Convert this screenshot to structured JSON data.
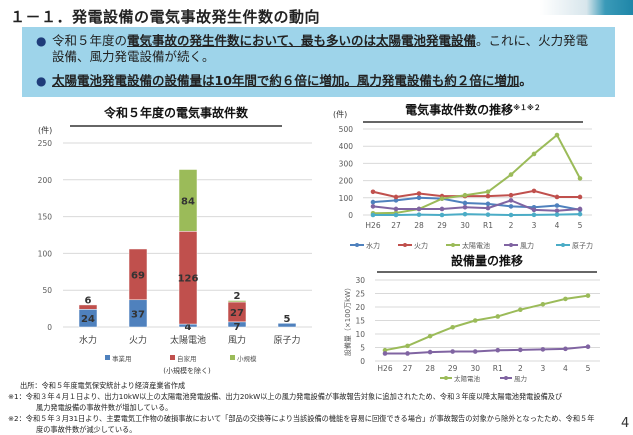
{
  "title": "１－１．発電設備の電気事故発生件数の動向",
  "bullets": [
    {
      "pre": "令和５年度の",
      "emph": "電気事故の発生件数において、最も多いのは太陽電池発電設備",
      "post": "。これに、火力発電設備、風力発電設備が続く。"
    },
    {
      "pre": "",
      "emph": "太陽電池発電設備の設備量は10年間で約６倍に増加。風力発電設備も約２倍に増加",
      "post": "。"
    }
  ],
  "chart_data": [
    {
      "type": "bar",
      "stacked": true,
      "title": "令和５年度の電気事故件数",
      "ylabel": "(件)",
      "ylim": [
        0,
        250
      ],
      "yticks": [
        0,
        50,
        100,
        150,
        200,
        250
      ],
      "categories": [
        "水力",
        "火力",
        "太陽電池",
        "風力",
        "原子力"
      ],
      "series": [
        {
          "name": "事業用",
          "color": "#4f81bd",
          "values": [
            24,
            37,
            4,
            7,
            5
          ]
        },
        {
          "name": "自家用",
          "color": "#c0504d",
          "values": [
            6,
            69,
            126,
            27,
            0
          ]
        },
        {
          "name": "小規模",
          "color": "#9bbb59",
          "values": [
            0,
            0,
            84,
            2,
            0
          ]
        }
      ],
      "legend_note": "(小規模を除く)",
      "legend": "bottom"
    },
    {
      "type": "line",
      "title": "電気事故件数の推移",
      "title_sup": "※１※２",
      "ylabel": "(件)",
      "ylim": [
        0,
        500
      ],
      "yticks": [
        0,
        100,
        200,
        300,
        400,
        500
      ],
      "x": [
        "H26",
        "27",
        "28",
        "29",
        "30",
        "R1",
        "2",
        "3",
        "4",
        "5"
      ],
      "series": [
        {
          "name": "水力",
          "color": "#4f81bd",
          "values": [
            75,
            85,
            100,
            95,
            70,
            65,
            50,
            45,
            55,
            30
          ]
        },
        {
          "name": "火力",
          "color": "#c0504d",
          "values": [
            135,
            105,
            125,
            110,
            110,
            110,
            115,
            140,
            105,
            105
          ]
        },
        {
          "name": "太陽電池",
          "color": "#9bbb59",
          "values": [
            10,
            12,
            35,
            95,
            115,
            135,
            235,
            355,
            465,
            213
          ]
        },
        {
          "name": "風力",
          "color": "#8064a2",
          "values": [
            50,
            35,
            35,
            35,
            45,
            40,
            85,
            30,
            25,
            35
          ]
        },
        {
          "name": "原子力",
          "color": "#4bacc6",
          "values": [
            0,
            0,
            2,
            0,
            5,
            2,
            0,
            1,
            2,
            5
          ]
        }
      ],
      "legend": "bottom"
    },
    {
      "type": "line",
      "title": "設備量の推移",
      "ylabel": "設備量（×100万kW）",
      "ylim": [
        0,
        30
      ],
      "yticks": [
        0,
        5,
        10,
        15,
        20,
        25,
        30
      ],
      "x": [
        "H26",
        "27",
        "28",
        "29",
        "30",
        "R1",
        "2",
        "3",
        "4",
        "5"
      ],
      "series": [
        {
          "name": "太陽電池",
          "color": "#9bbb59",
          "values": [
            4,
            5.6,
            9.2,
            12.5,
            15,
            16.5,
            19,
            21,
            23,
            24.2
          ]
        },
        {
          "name": "風力",
          "color": "#8064a2",
          "values": [
            2.8,
            2.8,
            3.3,
            3.5,
            3.5,
            4,
            4.1,
            4.3,
            4.5,
            5.3
          ]
        }
      ],
      "legend": "bottom"
    }
  ],
  "footer": {
    "source": "出所：令和５年度電気保安統計より経済産業省作成",
    "note1_a": "※1：令和３年４月１日より、出力10kW以上の太陽電池発電設備、出力20kW以上の風力発電設備が事故報告対象に追加されたため、令和３年度以降太陽電池発電設備及び",
    "note1_b": "風力発電設備の事故件数が増加している。",
    "note2_a": "※2：令和５年３月31日より、主要電気工作物の破損事故において「部品の交換等により当該設備の機能を容易に回復できる場合」が事故報告の対象から除外となったため、令和５年",
    "note2_b": "度の事故件数が減少している。"
  },
  "page_number": "4"
}
